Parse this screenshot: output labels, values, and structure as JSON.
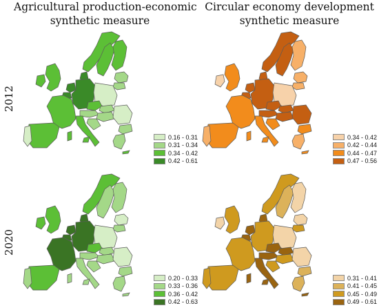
{
  "titles": {
    "left": [
      "Agricultural production-economic",
      "synthetic measure"
    ],
    "right": [
      "Circular economy development",
      "synthetic measure"
    ]
  },
  "years": [
    "2012",
    "2020"
  ],
  "legends": {
    "agri_2012": [
      {
        "label": "0.16 - 0.31",
        "color": "#d6eec6"
      },
      {
        "label": "0.31 - 0.34",
        "color": "#a4d888"
      },
      {
        "label": "0.34 - 0.42",
        "color": "#5cbf36"
      },
      {
        "label": "0.42 - 0.61",
        "color": "#3a8a28"
      }
    ],
    "circ_2012": [
      {
        "label": "0.34 - 0.42",
        "color": "#f7d2aa"
      },
      {
        "label": "0.42 - 0.44",
        "color": "#f7b068"
      },
      {
        "label": "0.44 - 0.47",
        "color": "#f28c1c"
      },
      {
        "label": "0.47 - 0.56",
        "color": "#c45f12"
      }
    ],
    "agri_2020": [
      {
        "label": "0.20 - 0.33",
        "color": "#d6eec6"
      },
      {
        "label": "0.33 - 0.36",
        "color": "#a4d888"
      },
      {
        "label": "0.36 - 0.42",
        "color": "#5cbf36"
      },
      {
        "label": "0.42 - 0.63",
        "color": "#3a7424"
      }
    ],
    "circ_2020": [
      {
        "label": "0.31 - 0.41",
        "color": "#f3d4a8"
      },
      {
        "label": "0.41 - 0.45",
        "color": "#dcb25a"
      },
      {
        "label": "0.45 - 0.49",
        "color": "#cf9a1f"
      },
      {
        "label": "0.49 - 0.61",
        "color": "#9a6410"
      }
    ]
  },
  "maps": {
    "agri_2012": {
      "fr": 2,
      "es": 2,
      "pt": 0,
      "it": 2,
      "de": 3,
      "pl": 0,
      "uk": 2,
      "ie": 2,
      "se": 2,
      "fi": 2,
      "no": 2,
      "nl": 3,
      "be": 3,
      "dk": 3,
      "cz": 2,
      "at": 1,
      "hu": 1,
      "ro": 0,
      "bg": 1,
      "gr": 1,
      "hr": 1,
      "sk": 1,
      "balt": 1,
      "lt": 1
    },
    "circ_2012": {
      "fr": 2,
      "es": 2,
      "pt": 1,
      "it": 2,
      "de": 3,
      "pl": 0,
      "uk": 2,
      "ie": 0,
      "se": 3,
      "fi": 1,
      "no": 3,
      "nl": 3,
      "be": 3,
      "dk": 3,
      "cz": 3,
      "at": 3,
      "hu": 3,
      "ro": 3,
      "bg": 2,
      "gr": 1,
      "hr": 2,
      "sk": 3,
      "balt": 1,
      "lt": 1
    },
    "agri_2020": {
      "fr": 3,
      "es": 2,
      "pt": 1,
      "it": 1,
      "de": 3,
      "pl": 0,
      "uk": 2,
      "ie": 2,
      "se": 1,
      "fi": 1,
      "no": 2,
      "nl": 3,
      "be": 3,
      "dk": 3,
      "cz": 2,
      "at": 1,
      "hu": 1,
      "ro": 0,
      "bg": 1,
      "gr": 1,
      "hr": 1,
      "sk": 1,
      "balt": 0,
      "lt": 1
    },
    "circ_2020": {
      "fr": 2,
      "es": 2,
      "pt": 2,
      "it": 3,
      "de": 2,
      "pl": 0,
      "uk": 2,
      "ie": 0,
      "se": 1,
      "fi": 0,
      "no": 2,
      "nl": 3,
      "be": 3,
      "dk": 3,
      "cz": 3,
      "at": 3,
      "hu": 2,
      "ro": 0,
      "bg": 1,
      "gr": 1,
      "hr": 2,
      "sk": 3,
      "balt": 0,
      "lt": 2
    }
  }
}
